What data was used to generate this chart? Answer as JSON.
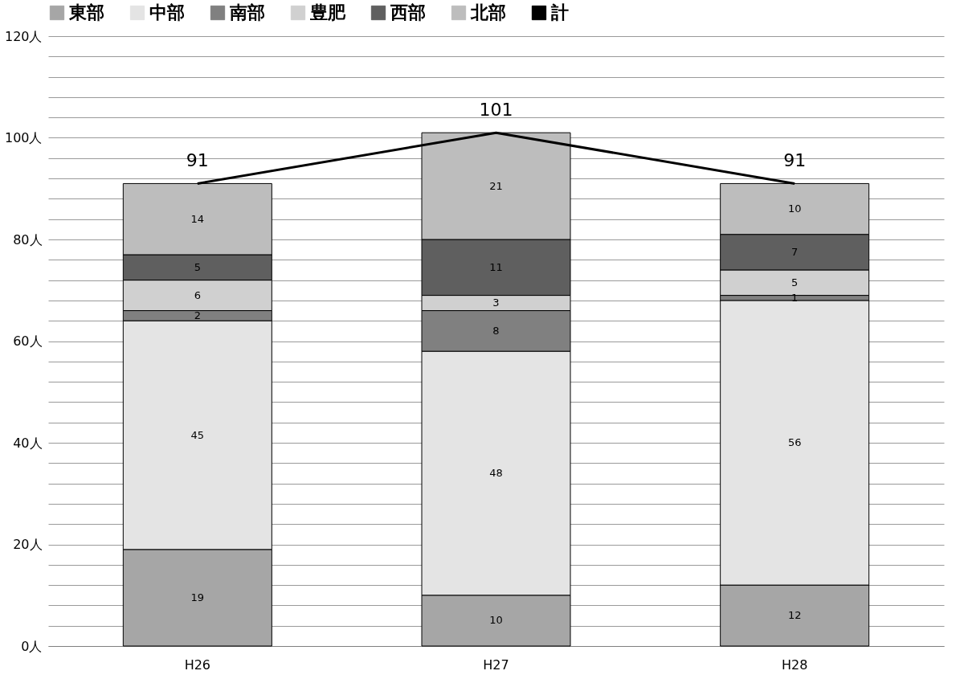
{
  "chart_data": {
    "type": "bar",
    "stacked": true,
    "categories": [
      "H26",
      "H27",
      "H28"
    ],
    "series": [
      {
        "name": "東部",
        "color": "#a6a6a6",
        "values": [
          19,
          10,
          12
        ]
      },
      {
        "name": "中部",
        "color": "#e4e4e4",
        "values": [
          45,
          48,
          56
        ]
      },
      {
        "name": "南部",
        "color": "#808080",
        "values": [
          2,
          8,
          1
        ]
      },
      {
        "name": "豊肥",
        "color": "#d0d0d0",
        "values": [
          6,
          3,
          5
        ]
      },
      {
        "name": "西部",
        "color": "#5f5f5f",
        "values": [
          5,
          11,
          7
        ]
      },
      {
        "name": "北部",
        "color": "#bdbdbd",
        "values": [
          14,
          21,
          10
        ]
      },
      {
        "name": "計",
        "color": "#000000",
        "type": "line",
        "values": [
          91,
          101,
          91
        ]
      }
    ],
    "ylim": [
      0,
      120
    ],
    "yticks": [
      {
        "value": 0,
        "label": "0人"
      },
      {
        "value": 4,
        "label": null
      },
      {
        "value": 8,
        "label": null
      },
      {
        "value": 12,
        "label": null
      },
      {
        "value": 16,
        "label": null
      },
      {
        "value": 20,
        "label": "20人"
      },
      {
        "value": 24,
        "label": null
      },
      {
        "value": 28,
        "label": null
      },
      {
        "value": 32,
        "label": null
      },
      {
        "value": 36,
        "label": null
      },
      {
        "value": 40,
        "label": "40人"
      },
      {
        "value": 44,
        "label": null
      },
      {
        "value": 48,
        "label": null
      },
      {
        "value": 52,
        "label": null
      },
      {
        "value": 56,
        "label": null
      },
      {
        "value": 60,
        "label": "60人"
      },
      {
        "value": 64,
        "label": null
      },
      {
        "value": 68,
        "label": null
      },
      {
        "value": 72,
        "label": null
      },
      {
        "value": 76,
        "label": null
      },
      {
        "value": 80,
        "label": "80人"
      },
      {
        "value": 84,
        "label": null
      },
      {
        "value": 88,
        "label": null
      },
      {
        "value": 92,
        "label": null
      },
      {
        "value": 96,
        "label": null
      },
      {
        "value": 100,
        "label": "100人"
      },
      {
        "value": 104,
        "label": null
      },
      {
        "value": 108,
        "label": null
      },
      {
        "value": 112,
        "label": null
      },
      {
        "value": 116,
        "label": null
      },
      {
        "value": 120,
        "label": "120人"
      }
    ],
    "grid": "y",
    "legend": "top",
    "data_labels": true,
    "marker": "none"
  }
}
